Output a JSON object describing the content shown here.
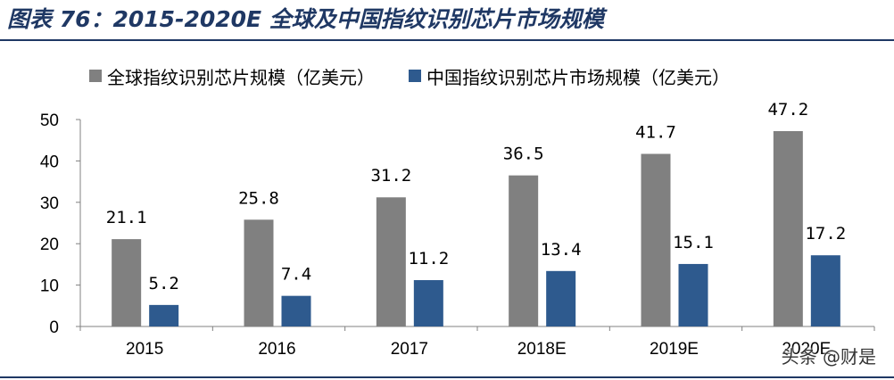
{
  "header": {
    "title": "图表 76：2015-2020E 全球及中国指纹识别芯片市场规模"
  },
  "watermark": "头条 @财是",
  "chart_data": {
    "type": "bar",
    "title": "图表 76：2015-2020E 全球及中国指纹识别芯片市场规模",
    "categories": [
      "2015",
      "2016",
      "2017",
      "2018E",
      "2019E",
      "2020E"
    ],
    "series": [
      {
        "name": "全球指纹识别芯片规模（亿美元）",
        "values": [
          21.1,
          25.8,
          31.2,
          36.5,
          41.7,
          47.2
        ],
        "labels": [
          "21.1",
          "25.8",
          "31.2",
          "36.5",
          "41.7",
          "47.2"
        ],
        "color": "#808080"
      },
      {
        "name": "中国指纹识别芯片市场规模（亿美元）",
        "values": [
          5.2,
          7.4,
          11.2,
          13.4,
          15.1,
          17.2
        ],
        "labels": [
          "5.2",
          "7.4",
          "11.2",
          "13.4",
          "15.1",
          "17.2"
        ],
        "color": "#2e5a8e"
      }
    ],
    "yticks": [
      "0",
      "10",
      "20",
      "30",
      "40",
      "50"
    ],
    "ylim": [
      0,
      50
    ],
    "xlabel": "",
    "ylabel": "",
    "grid": false,
    "legend": "top"
  },
  "colors": {
    "title": "#1f3864",
    "axis": "#808080"
  }
}
